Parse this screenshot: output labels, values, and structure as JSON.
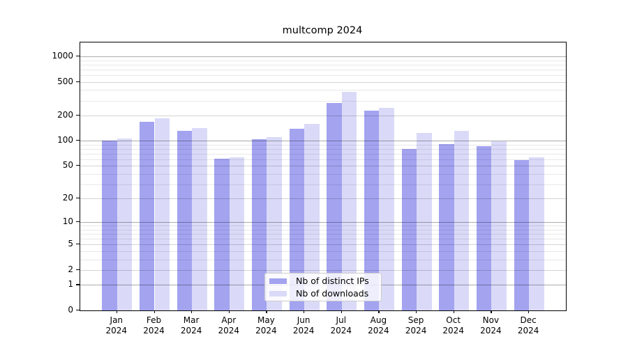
{
  "title": "multcomp 2024",
  "chart_data": {
    "type": "bar",
    "title": "multcomp 2024",
    "scale": "log1p",
    "categories": [
      "Jan",
      "Feb",
      "Mar",
      "Apr",
      "May",
      "Jun",
      "Jul",
      "Aug",
      "Sep",
      "Oct",
      "Nov",
      "Dec"
    ],
    "category_year": "2024",
    "series": [
      {
        "name": "Nb of distinct IPs",
        "color": "#a3a3f0",
        "values": [
          100,
          169,
          132,
          61,
          104,
          139,
          280,
          230,
          80,
          91,
          86,
          59
        ]
      },
      {
        "name": "Nb of downloads",
        "color": "#dadaf8",
        "values": [
          106,
          185,
          141,
          63,
          111,
          160,
          384,
          247,
          125,
          130,
          99,
          64
        ]
      }
    ],
    "yticks": [
      0,
      1,
      2,
      5,
      10,
      20,
      50,
      100,
      200,
      500,
      1000
    ],
    "ylim": [
      0,
      1460
    ],
    "grid": {
      "major_values": [
        1,
        10,
        100,
        1000
      ],
      "major_color": "rgba(0,0,0,0.33)",
      "minor_color": "rgba(0,0,0,0.09)",
      "drawn_over_bars": true
    },
    "legend_position": "lower-center"
  }
}
